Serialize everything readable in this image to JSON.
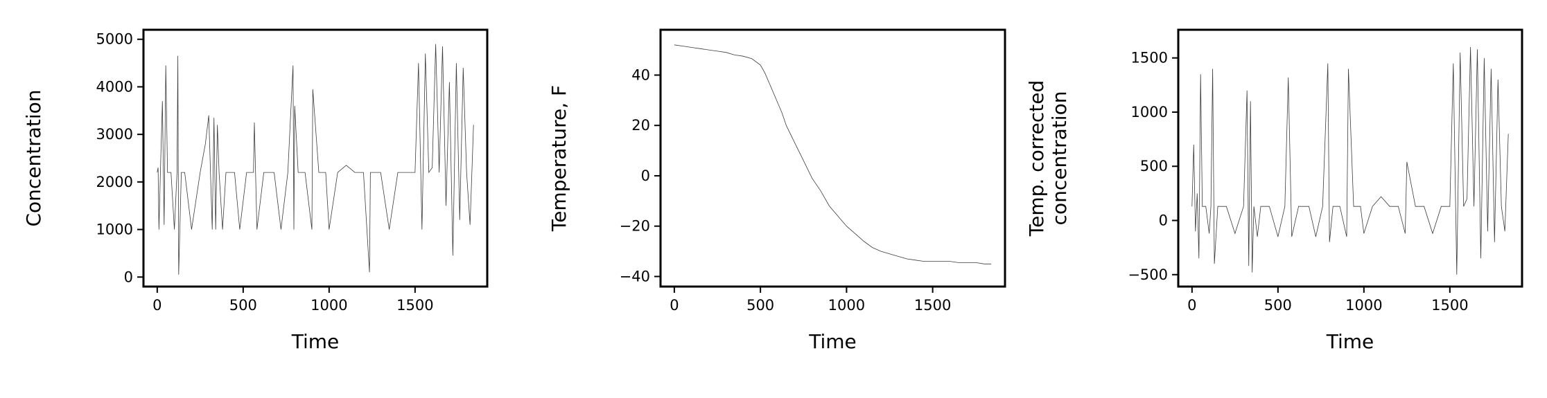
{
  "chart_data": [
    {
      "type": "line",
      "xlabel": "Time",
      "ylabel": [
        "Concentration"
      ],
      "xlim": [
        -80,
        1920
      ],
      "ylim": [
        -200,
        5200
      ],
      "xticks": [
        0,
        500,
        1000,
        1500
      ],
      "yticks": [
        0,
        1000,
        2000,
        3000,
        4000,
        5000
      ],
      "line_color": "#3a3a3a",
      "x": [
        0,
        5,
        10,
        20,
        30,
        40,
        50,
        60,
        80,
        100,
        115,
        120,
        125,
        140,
        160,
        200,
        250,
        280,
        300,
        320,
        330,
        340,
        350,
        360,
        380,
        400,
        450,
        480,
        520,
        560,
        565,
        580,
        620,
        680,
        720,
        760,
        790,
        795,
        800,
        820,
        860,
        900,
        905,
        940,
        980,
        1000,
        1050,
        1100,
        1150,
        1200,
        1235,
        1240,
        1260,
        1300,
        1350,
        1400,
        1450,
        1500,
        1520,
        1540,
        1560,
        1580,
        1600,
        1620,
        1640,
        1660,
        1680,
        1700,
        1720,
        1740,
        1760,
        1780,
        1800,
        1820,
        1840
      ],
      "values": [
        2200,
        2300,
        1000,
        2400,
        3700,
        1100,
        4450,
        2200,
        2200,
        1000,
        2200,
        4650,
        50,
        2200,
        2200,
        1000,
        2200,
        2800,
        3400,
        1000,
        3350,
        1000,
        3200,
        2200,
        1000,
        2200,
        2200,
        1000,
        2200,
        2200,
        3250,
        1000,
        2200,
        2200,
        1000,
        2200,
        4450,
        1000,
        3600,
        2200,
        2200,
        1000,
        3950,
        2200,
        2200,
        1000,
        2200,
        2350,
        2200,
        2200,
        100,
        2200,
        2200,
        2200,
        1000,
        2200,
        2200,
        2200,
        4500,
        1000,
        4700,
        2200,
        2300,
        4900,
        2200,
        4850,
        1500,
        4100,
        450,
        4500,
        1200,
        4400,
        2200,
        1100,
        3200
      ]
    },
    {
      "type": "line",
      "xlabel": "Time",
      "ylabel": [
        "Temperature, F"
      ],
      "xlim": [
        -80,
        1920
      ],
      "ylim": [
        -44,
        58
      ],
      "xticks": [
        0,
        500,
        1000,
        1500
      ],
      "yticks": [
        -40,
        -20,
        0,
        20,
        40
      ],
      "line_color": "#3a3a3a",
      "x": [
        0,
        50,
        100,
        150,
        200,
        250,
        300,
        350,
        400,
        450,
        500,
        525,
        550,
        575,
        600,
        625,
        650,
        700,
        750,
        800,
        850,
        900,
        950,
        1000,
        1050,
        1100,
        1150,
        1200,
        1250,
        1300,
        1350,
        1400,
        1450,
        1500,
        1550,
        1600,
        1650,
        1700,
        1750,
        1800,
        1840
      ],
      "values": [
        52,
        51.5,
        51,
        50.5,
        50,
        49.5,
        49,
        48,
        47.5,
        46.5,
        44,
        41,
        37,
        33,
        29,
        25,
        20,
        13,
        6,
        -1,
        -6,
        -12,
        -16,
        -20,
        -23,
        -26,
        -28.5,
        -30,
        -31,
        -32,
        -33,
        -33.5,
        -34,
        -34,
        -34,
        -34,
        -34.5,
        -34.5,
        -34.5,
        -35,
        -35
      ]
    },
    {
      "type": "line",
      "xlabel": "Time",
      "ylabel": [
        "Temp. corrected",
        "concentration"
      ],
      "xlim": [
        -80,
        1920
      ],
      "ylim": [
        -610,
        1760
      ],
      "xticks": [
        0,
        500,
        1000,
        1500
      ],
      "yticks": [
        -500,
        0,
        500,
        1000,
        1500
      ],
      "line_color": "#3a3a3a",
      "x": [
        0,
        10,
        20,
        30,
        40,
        50,
        60,
        70,
        80,
        100,
        110,
        120,
        130,
        150,
        200,
        250,
        300,
        320,
        330,
        340,
        350,
        360,
        380,
        400,
        450,
        500,
        540,
        560,
        580,
        620,
        680,
        720,
        760,
        790,
        800,
        820,
        860,
        900,
        910,
        940,
        980,
        1000,
        1050,
        1100,
        1150,
        1200,
        1240,
        1250,
        1300,
        1350,
        1400,
        1450,
        1500,
        1520,
        1540,
        1560,
        1580,
        1600,
        1620,
        1640,
        1660,
        1680,
        1700,
        1720,
        1740,
        1760,
        1780,
        1800,
        1820,
        1840
      ],
      "values": [
        130,
        700,
        -100,
        250,
        -350,
        1350,
        130,
        130,
        130,
        -120,
        130,
        1400,
        -400,
        130,
        130,
        -120,
        130,
        1200,
        -420,
        1100,
        -480,
        130,
        -150,
        130,
        130,
        -150,
        130,
        1320,
        -150,
        130,
        130,
        -150,
        130,
        1450,
        -200,
        130,
        130,
        -150,
        1400,
        130,
        130,
        -120,
        130,
        220,
        130,
        130,
        -120,
        540,
        130,
        130,
        -120,
        130,
        130,
        1450,
        -500,
        1550,
        130,
        200,
        1600,
        130,
        1580,
        -350,
        1500,
        -100,
        1400,
        -200,
        1300,
        130,
        -100,
        800
      ]
    }
  ]
}
